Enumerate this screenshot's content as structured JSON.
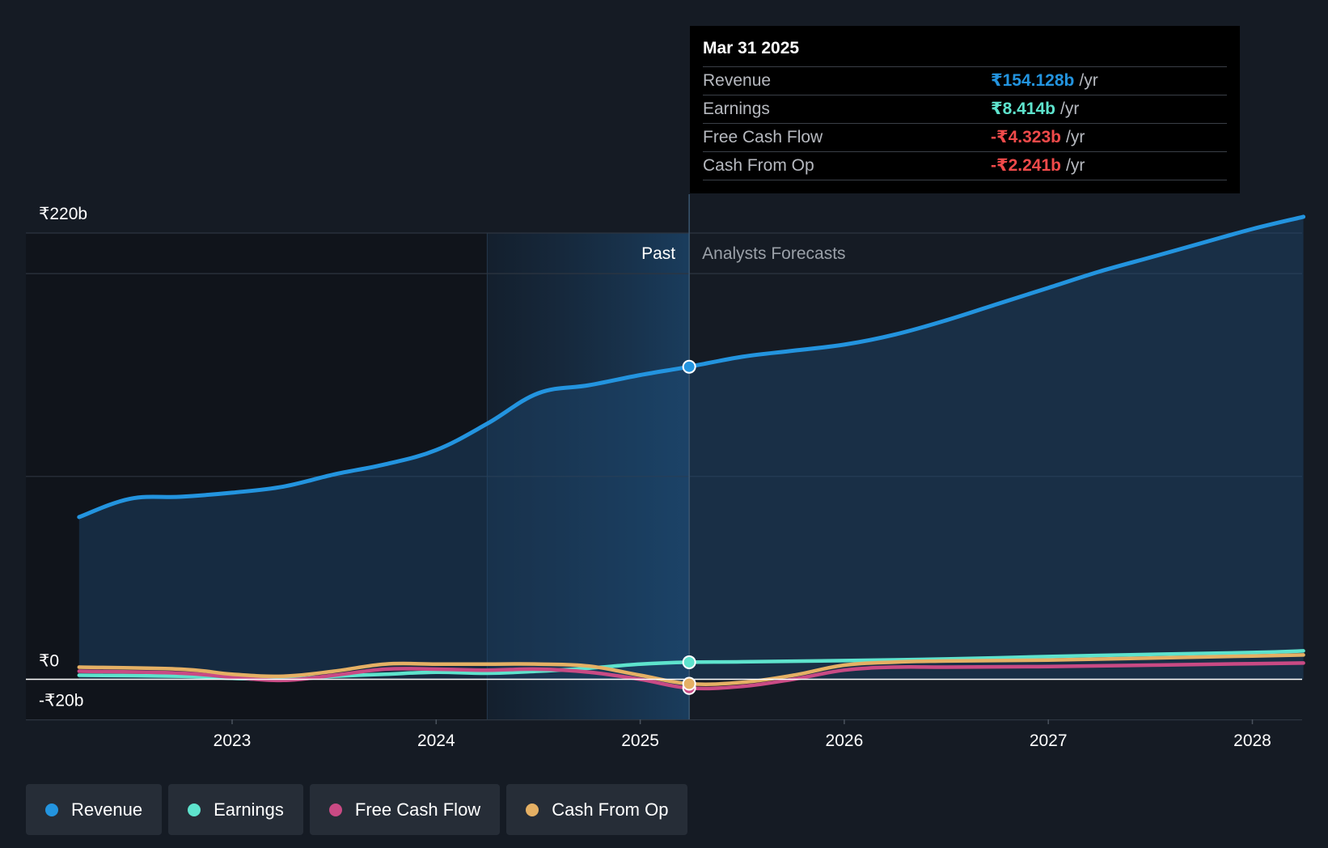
{
  "colors": {
    "background": "#151b24",
    "revenue": "#2394df",
    "earnings": "#5ee3cd",
    "free_cash_flow": "#c94a84",
    "cash_from_op": "#e5b064",
    "negative": "#f04a4a"
  },
  "tooltip": {
    "date": "Mar 31 2025",
    "rows": [
      {
        "label": "Revenue",
        "value": "₹154.128b",
        "unit": "/yr"
      },
      {
        "label": "Earnings",
        "value": "₹8.414b",
        "unit": "/yr"
      },
      {
        "label": "Free Cash Flow",
        "value": "-₹4.323b",
        "unit": "/yr"
      },
      {
        "label": "Cash From Op",
        "value": "-₹2.241b",
        "unit": "/yr"
      }
    ]
  },
  "legend": [
    {
      "label": "Revenue",
      "icon": "revenue-dot"
    },
    {
      "label": "Earnings",
      "icon": "earnings-dot"
    },
    {
      "label": "Free Cash Flow",
      "icon": "free-cash-flow-dot"
    },
    {
      "label": "Cash From Op",
      "icon": "cash-from-op-dot"
    }
  ],
  "chart_data": {
    "type": "line",
    "x_ticks": [
      2023,
      2024,
      2025,
      2026,
      2027,
      2028
    ],
    "ylim": [
      -20,
      220
    ],
    "y_tick_labels": [
      {
        "value": 220,
        "label": "₹220b"
      },
      {
        "value": 0,
        "label": "₹0"
      },
      {
        "value": -20,
        "label": "-₹20b"
      }
    ],
    "gridlines": [
      0,
      100,
      200,
      220
    ],
    "past_label": "Past",
    "forecast_label": "Analysts Forecasts",
    "past_shade_start": 2024.25,
    "divider_x": 2025.24,
    "grid": true,
    "legend_position": "bottom-left",
    "series": [
      {
        "name": "Revenue",
        "points": [
          [
            2022.25,
            80
          ],
          [
            2022.5,
            89
          ],
          [
            2022.75,
            90
          ],
          [
            2023.0,
            92
          ],
          [
            2023.25,
            95
          ],
          [
            2023.5,
            101
          ],
          [
            2023.75,
            106
          ],
          [
            2024.0,
            113
          ],
          [
            2024.25,
            126
          ],
          [
            2024.5,
            141
          ],
          [
            2024.75,
            145
          ],
          [
            2025.0,
            150
          ],
          [
            2025.24,
            154.1
          ],
          [
            2025.5,
            159
          ],
          [
            2025.75,
            162
          ],
          [
            2026.0,
            165
          ],
          [
            2026.25,
            170
          ],
          [
            2026.5,
            177
          ],
          [
            2026.75,
            185
          ],
          [
            2027.0,
            193
          ],
          [
            2027.25,
            201
          ],
          [
            2027.5,
            208
          ],
          [
            2027.75,
            215
          ],
          [
            2028.0,
            222
          ],
          [
            2028.25,
            228
          ]
        ]
      },
      {
        "name": "Earnings",
        "points": [
          [
            2022.25,
            2
          ],
          [
            2022.75,
            1.5
          ],
          [
            2023.0,
            0.5
          ],
          [
            2023.25,
            0
          ],
          [
            2023.5,
            1.5
          ],
          [
            2023.75,
            2.5
          ],
          [
            2024.0,
            3.5
          ],
          [
            2024.25,
            3
          ],
          [
            2024.5,
            4
          ],
          [
            2024.75,
            5.5
          ],
          [
            2025.0,
            7.5
          ],
          [
            2025.24,
            8.4
          ],
          [
            2025.5,
            8.6
          ],
          [
            2026.0,
            9.2
          ],
          [
            2026.5,
            10
          ],
          [
            2027.0,
            11.2
          ],
          [
            2027.5,
            12.3
          ],
          [
            2028.0,
            13.2
          ],
          [
            2028.25,
            14
          ]
        ]
      },
      {
        "name": "Free Cash Flow",
        "points": [
          [
            2022.25,
            4
          ],
          [
            2022.75,
            3
          ],
          [
            2023.0,
            1
          ],
          [
            2023.25,
            -0.5
          ],
          [
            2023.5,
            2
          ],
          [
            2023.75,
            5
          ],
          [
            2024.0,
            5
          ],
          [
            2024.25,
            4.5
          ],
          [
            2024.5,
            5
          ],
          [
            2024.75,
            3.5
          ],
          [
            2025.0,
            0
          ],
          [
            2025.24,
            -4.3
          ],
          [
            2025.5,
            -3.5
          ],
          [
            2025.75,
            0
          ],
          [
            2026.0,
            4.5
          ],
          [
            2026.25,
            6
          ],
          [
            2026.5,
            6
          ],
          [
            2027.0,
            6.3
          ],
          [
            2027.5,
            7
          ],
          [
            2028.0,
            7.7
          ],
          [
            2028.25,
            8
          ]
        ]
      },
      {
        "name": "Cash From Op",
        "points": [
          [
            2022.25,
            6
          ],
          [
            2022.75,
            5
          ],
          [
            2023.0,
            2.5
          ],
          [
            2023.25,
            1.5
          ],
          [
            2023.5,
            4
          ],
          [
            2023.75,
            7.5
          ],
          [
            2024.0,
            7.5
          ],
          [
            2024.25,
            7.5
          ],
          [
            2024.5,
            7.5
          ],
          [
            2024.75,
            6.5
          ],
          [
            2025.0,
            2
          ],
          [
            2025.24,
            -2.2
          ],
          [
            2025.5,
            -1.5
          ],
          [
            2025.75,
            2
          ],
          [
            2026.0,
            7
          ],
          [
            2026.25,
            8.5
          ],
          [
            2026.5,
            9
          ],
          [
            2027.0,
            9.5
          ],
          [
            2027.5,
            10.5
          ],
          [
            2028.0,
            11.5
          ],
          [
            2028.25,
            12
          ]
        ]
      }
    ]
  }
}
